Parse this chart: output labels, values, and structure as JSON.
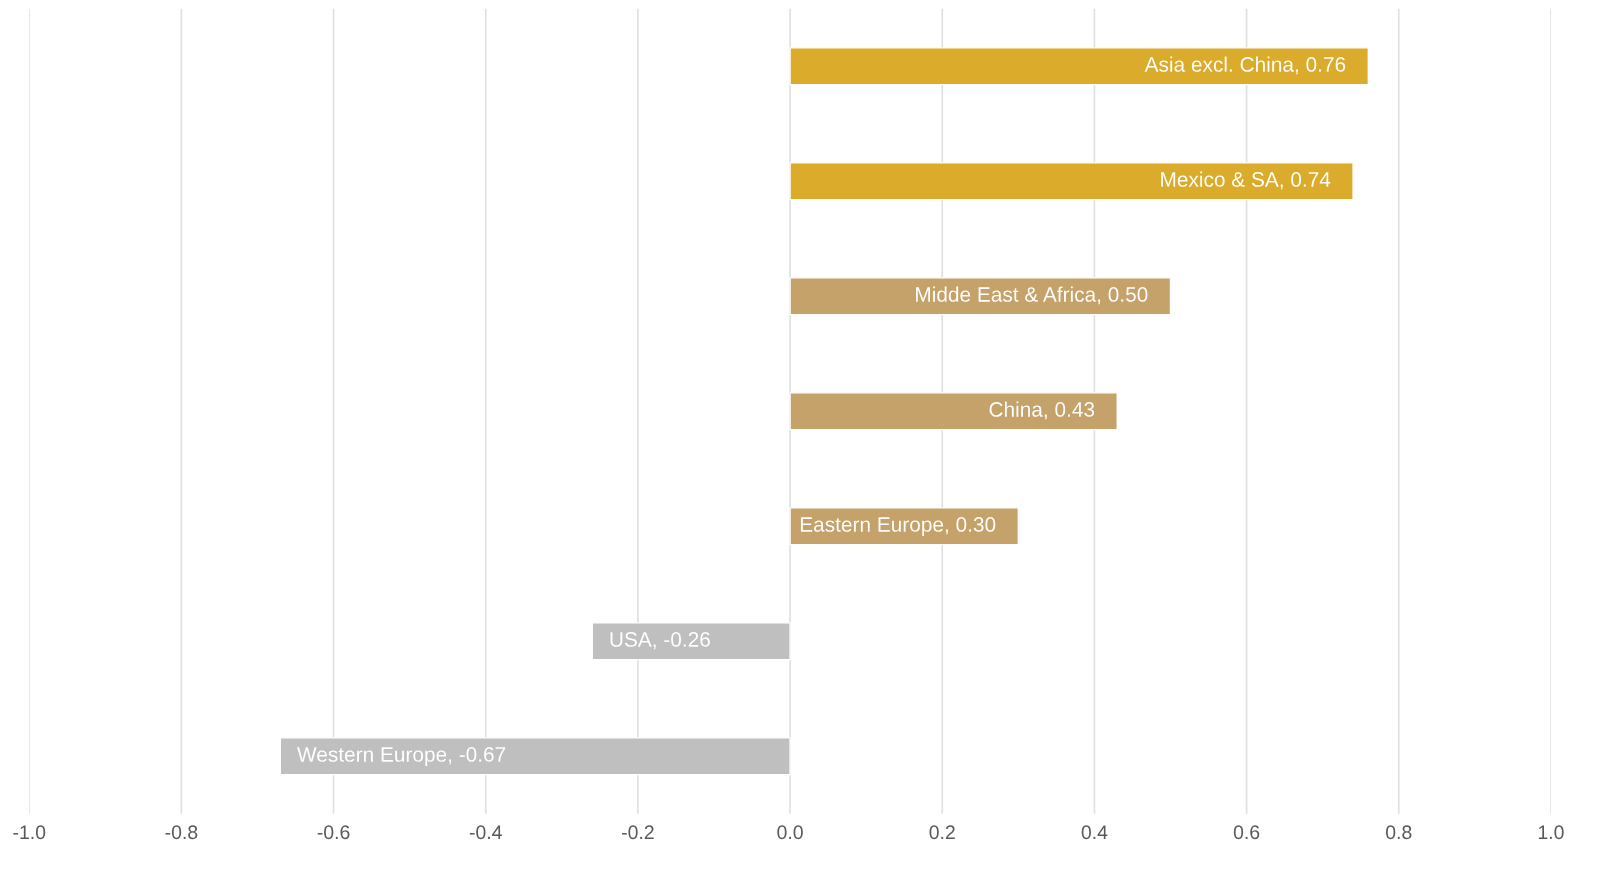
{
  "chart_data": {
    "type": "bar",
    "orientation": "horizontal",
    "categories": [
      null,
      null,
      null,
      null,
      null,
      null,
      null
    ],
    "values": [
      0.76,
      0.74,
      0.5,
      0.43,
      0.3,
      -0.26,
      -0.67
    ],
    "colors": [
      "#dbab2b",
      "#dbab2b",
      "#c5a26a",
      "#c5a26a",
      "#c5a26a",
      "#bfbfbf",
      "#bfbfbf"
    ],
    "value_labels": [
      "Asia excl. China, 0.76",
      "Mexico & SA, 0.74",
      "Midde East & Africa, 0.50",
      "China, 0.43",
      "Eastern Europe, 0.30",
      "USA, -0.26",
      "Western Europe, -0.67"
    ],
    "xlim": [
      -1.0,
      1.0
    ],
    "xticks": [
      {
        "value": -1.0,
        "label": "-1.0"
      },
      {
        "value": -0.8,
        "label": "-0.8"
      },
      {
        "value": -0.6,
        "label": "-0.6"
      },
      {
        "value": -0.4,
        "label": "-0.4"
      },
      {
        "value": -0.2,
        "label": "-0.2"
      },
      {
        "value": 0.0,
        "label": "0.0"
      },
      {
        "value": 0.2,
        "label": "0.2"
      },
      {
        "value": 0.4,
        "label": "0.4"
      },
      {
        "value": 0.6,
        "label": "0.6"
      },
      {
        "value": 0.8,
        "label": "0.8"
      },
      {
        "value": 1.0,
        "label": "1.0"
      }
    ],
    "grid": "x",
    "tick_labels": "x"
  }
}
